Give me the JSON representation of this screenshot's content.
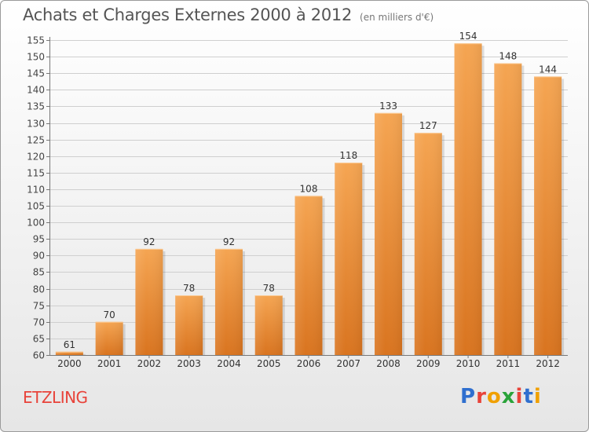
{
  "title": "Achats et Charges Externes 2000 à 2012",
  "unit": "(en milliers d'€)",
  "commune": "ETZLING",
  "logo": {
    "letters": [
      "P",
      "r",
      "o",
      "x",
      "i",
      "t",
      "i"
    ],
    "colors": [
      "#2f6fcf",
      "#e8433a",
      "#f0a000",
      "#2aa33a",
      "#e8433a",
      "#2f6fcf",
      "#f0a000"
    ]
  },
  "chart_data": {
    "type": "bar",
    "title": "Achats et Charges Externes 2000 à 2012",
    "categories": [
      "2000",
      "2001",
      "2002",
      "2003",
      "2004",
      "2005",
      "2006",
      "2007",
      "2008",
      "2009",
      "2010",
      "2011",
      "2012"
    ],
    "values": [
      61,
      70,
      92,
      78,
      92,
      78,
      108,
      118,
      133,
      127,
      154,
      148,
      144
    ],
    "ylim": [
      60,
      155
    ],
    "yticks": [
      60,
      65,
      70,
      75,
      80,
      85,
      90,
      95,
      100,
      105,
      110,
      115,
      120,
      125,
      130,
      135,
      140,
      145,
      150,
      155
    ],
    "grid": true,
    "bar_color": "#f0a040"
  }
}
